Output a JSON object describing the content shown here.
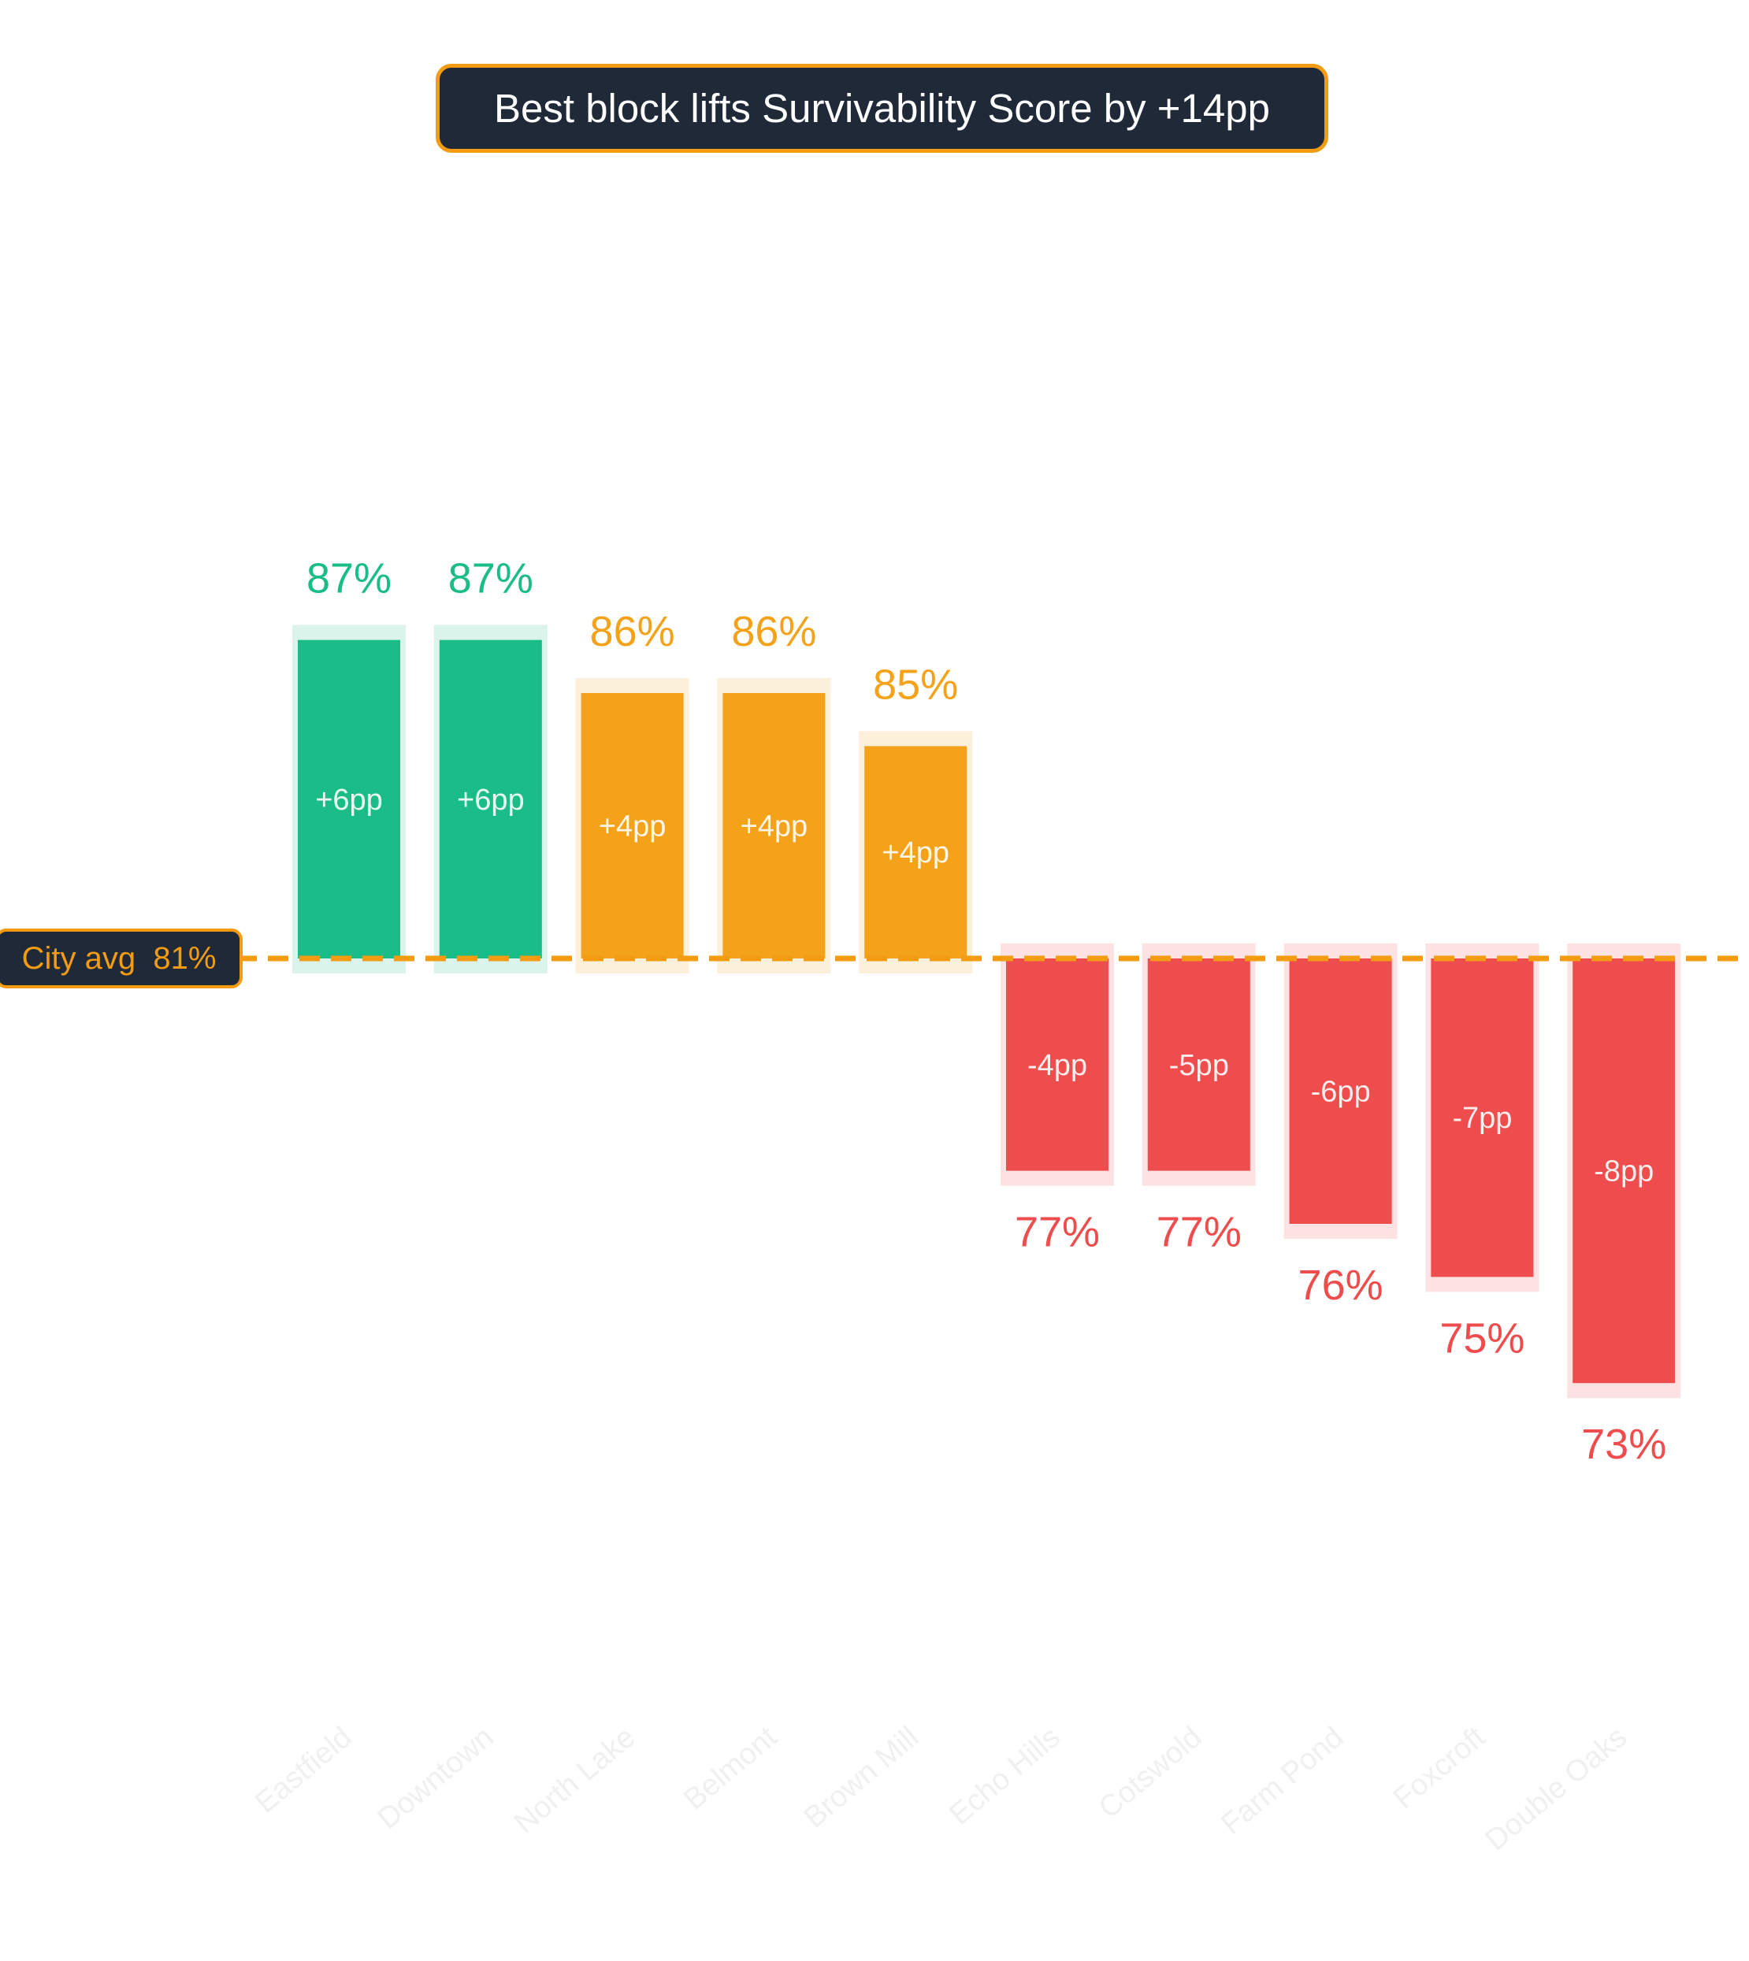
{
  "title": "Best block lifts Survivability Score by +14pp",
  "reference": {
    "label": "City avg",
    "value_label": "81%",
    "color": "#f39c12"
  },
  "colors": {
    "positive_high": "#1abc87",
    "positive_mid": "#f4a21a",
    "negative": "#ef4d4d",
    "label_box_bg": "#1f2937"
  },
  "chart_data": {
    "type": "bar",
    "title": "Best block lifts Survivability Score by +14pp",
    "baseline": 81,
    "categories": [
      "Eastfield",
      "Downtown",
      "North Lake",
      "Belmont",
      "Brown Mill",
      "Echo Hills",
      "Cotswold",
      "Farm Pond",
      "Foxcroft",
      "Double Oaks"
    ],
    "values": [
      87,
      87,
      86,
      86,
      85,
      77,
      77,
      76,
      75,
      73
    ],
    "value_labels": [
      "87%",
      "87%",
      "86%",
      "86%",
      "85%",
      "77%",
      "77%",
      "76%",
      "75%",
      "73%"
    ],
    "delta_labels": [
      "+6pp",
      "+6pp",
      "+4pp",
      "+4pp",
      "+4pp",
      "-4pp",
      "-5pp",
      "-6pp",
      "-7pp",
      "-8pp"
    ],
    "bar_colors": [
      "#1abc87",
      "#1abc87",
      "#f4a21a",
      "#f4a21a",
      "#f4a21a",
      "#ef4d4d",
      "#ef4d4d",
      "#ef4d4d",
      "#ef4d4d",
      "#ef4d4d"
    ],
    "ylim": [
      67,
      94
    ],
    "grid": false,
    "legend": "none"
  }
}
